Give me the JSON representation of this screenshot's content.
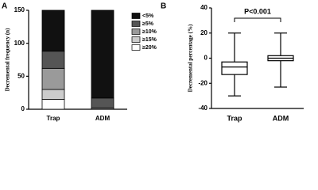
{
  "chart_data": [
    {
      "type": "bar",
      "stacked": true,
      "panel_label": "A",
      "y_label": "Decremental frequency (n)",
      "categories": [
        "Trap",
        "ADM"
      ],
      "series": [
        {
          "name": "<5%",
          "color": "#111111",
          "values": [
            62,
            133
          ]
        },
        {
          "name": "≥5%",
          "color": "#555555",
          "values": [
            26,
            15
          ]
        },
        {
          "name": "≥10%",
          "color": "#9a9a9a",
          "values": [
            32,
            2
          ]
        },
        {
          "name": "≥15%",
          "color": "#cccccc",
          "values": [
            15,
            0
          ]
        },
        {
          "name": "≥20%",
          "color": "#ffffff",
          "values": [
            15,
            0
          ]
        }
      ],
      "ylim": [
        0,
        150
      ],
      "yticks": [
        0,
        50,
        100,
        150
      ]
    },
    {
      "type": "box",
      "panel_label": "B",
      "y_label": "Decremental percentage (%)",
      "annotation": "P<0.001",
      "categories": [
        "Trap",
        "ADM"
      ],
      "boxes": [
        {
          "min": -30,
          "q1": -13,
          "median": -7,
          "q3": -3,
          "max": 20
        },
        {
          "min": -23,
          "q1": -2,
          "median": 0,
          "q3": 2,
          "max": 20
        }
      ],
      "ylim": [
        -40,
        40
      ],
      "yticks": [
        -40,
        -20,
        0,
        20,
        40
      ]
    }
  ]
}
